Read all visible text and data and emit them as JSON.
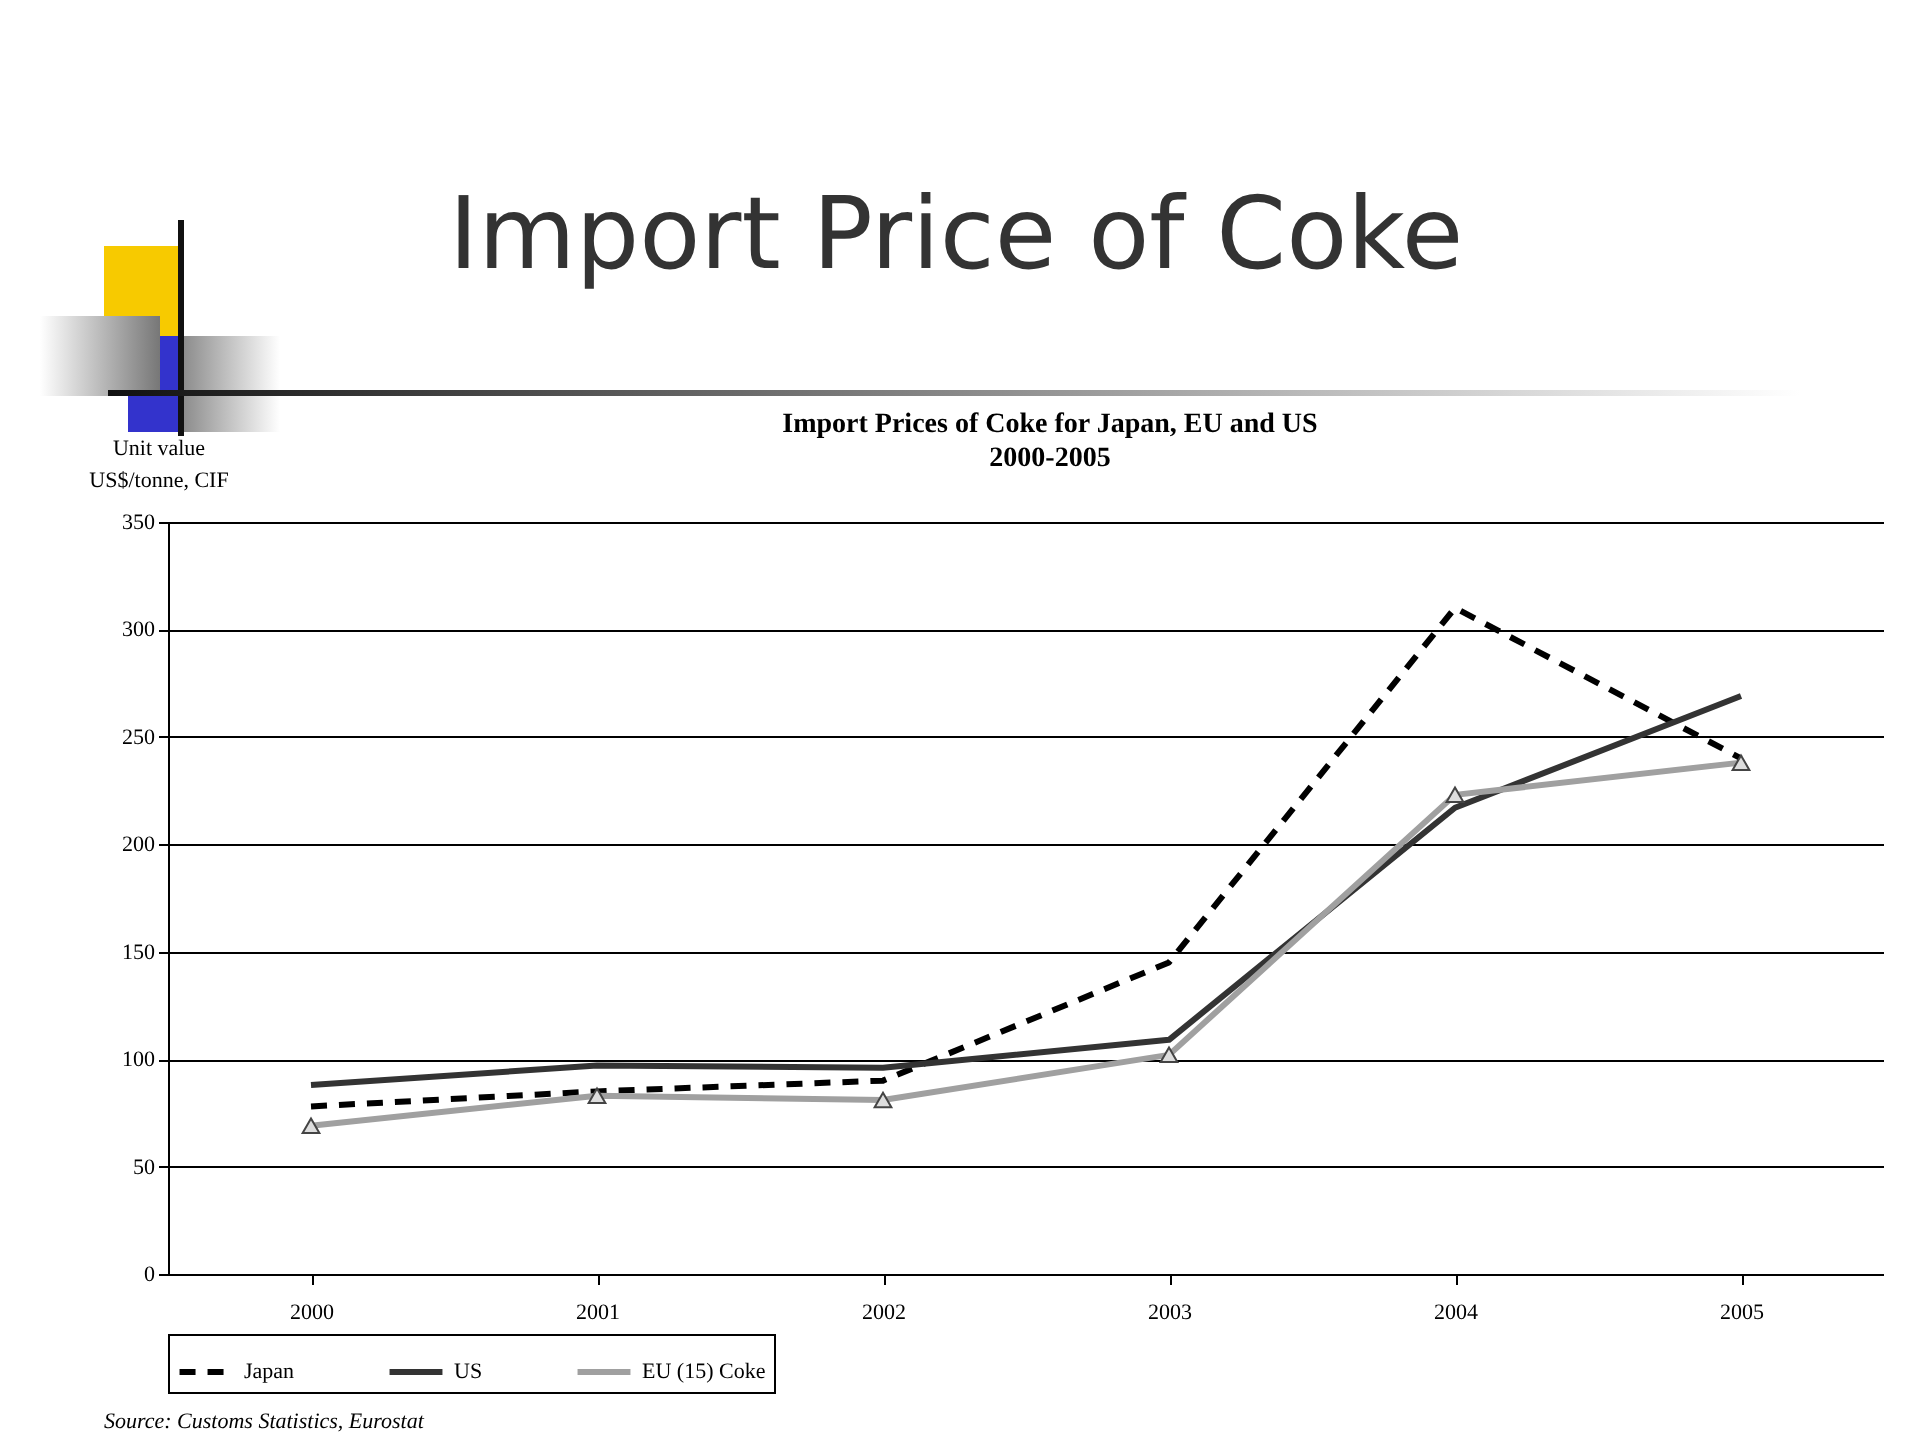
{
  "chart_data": {
    "type": "line",
    "title": "Import Price of Coke",
    "subtitle": "Import Prices of Coke for Japan, EU and US\n2000-2005",
    "ylabel": "Unit value\nUS$/tonne, CIF",
    "categories": [
      "2000",
      "2001",
      "2002",
      "2003",
      "2004",
      "2005"
    ],
    "series": [
      {
        "name": "Japan",
        "color": "#000000",
        "line_style": "dashed",
        "marker": "none",
        "values": [
          78,
          85,
          90,
          145,
          310,
          240
        ]
      },
      {
        "name": "US",
        "color": "#333333",
        "line_style": "solid",
        "marker": "none",
        "values": [
          88,
          97,
          96,
          109,
          217,
          269
        ]
      },
      {
        "name": "EU (15) Coke",
        "color": "#a0a0a0",
        "line_style": "solid",
        "marker": "triangle",
        "values": [
          69,
          83,
          81,
          102,
          223,
          238
        ]
      }
    ],
    "ylim": [
      0,
      350
    ],
    "yticks": [
      0,
      50,
      100,
      150,
      200,
      250,
      300,
      350
    ],
    "grid": "y",
    "legend": "bottom",
    "annotations": [
      "Source: Customs Statistics, Eurostat"
    ]
  }
}
